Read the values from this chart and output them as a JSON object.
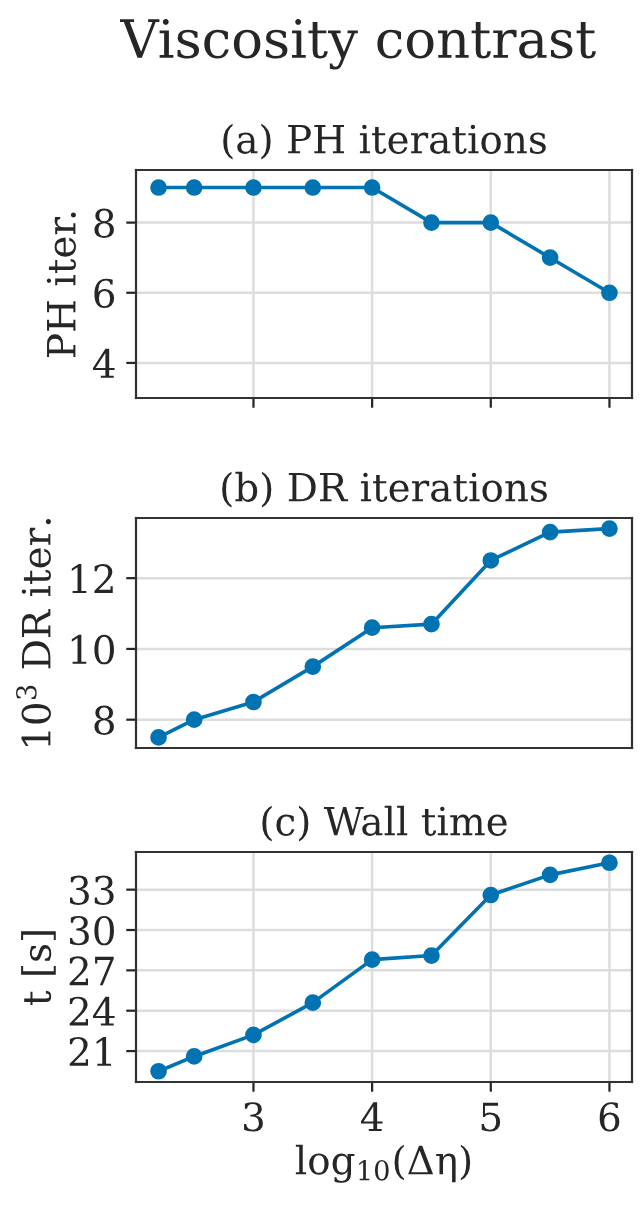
{
  "chart_data": [
    {
      "type": "line",
      "title": "(a) PH iterations",
      "ylabel": "PH iter.",
      "annotations": [
        "Viscosity contrast"
      ],
      "x": [
        2.2,
        2.5,
        3,
        3.5,
        4,
        4.5,
        5,
        5.5,
        6
      ],
      "series": [
        {
          "color": "#0173b2",
          "values": [
            9,
            9,
            9,
            9,
            9,
            8,
            8,
            7,
            6
          ]
        }
      ],
      "xlim": [
        2.01,
        6.19
      ],
      "xticks": [
        3,
        4,
        5,
        6
      ],
      "ylim": [
        3,
        9.5
      ],
      "yticks": [
        4,
        6,
        8
      ],
      "grid": true,
      "tick_labels": "y",
      "marker": "circle",
      "line_style": "solid"
    },
    {
      "type": "line",
      "title": "(b) DR iterations",
      "ylabel": "10$^{3}$ DR iter.",
      "x": [
        2.2,
        2.5,
        3,
        3.5,
        4,
        4.5,
        5,
        5.5,
        6
      ],
      "series": [
        {
          "color": "#0173b2",
          "values": [
            7.5,
            8,
            8.5,
            9.5,
            10.6,
            10.7,
            12.5,
            13.3,
            13.4
          ]
        }
      ],
      "xlim": [
        2.01,
        6.19
      ],
      "ylim": [
        7.2,
        13.7
      ],
      "yticks": [
        8,
        10,
        12
      ],
      "grid": "y",
      "tick_labels": "y",
      "marker": "circle",
      "line_style": "solid"
    },
    {
      "type": "line",
      "title": "(c) Wall time",
      "ylabel": "t [s]",
      "xlabel": "log$_{10}$(Δη)",
      "x": [
        2.2,
        2.5,
        3,
        3.5,
        4,
        4.5,
        5,
        5.5,
        6
      ],
      "series": [
        {
          "color": "#0173b2",
          "values": [
            19.5,
            20.6,
            22.2,
            24.6,
            27.8,
            28.1,
            32.6,
            34.1,
            35.0
          ]
        }
      ],
      "xlim": [
        2.01,
        6.19
      ],
      "xticks": [
        3,
        4,
        5,
        6
      ],
      "ylim": [
        18.7,
        35.8
      ],
      "yticks": [
        21,
        24,
        27,
        30,
        33
      ],
      "grid": true,
      "marker": "circle",
      "line_style": "solid"
    }
  ]
}
